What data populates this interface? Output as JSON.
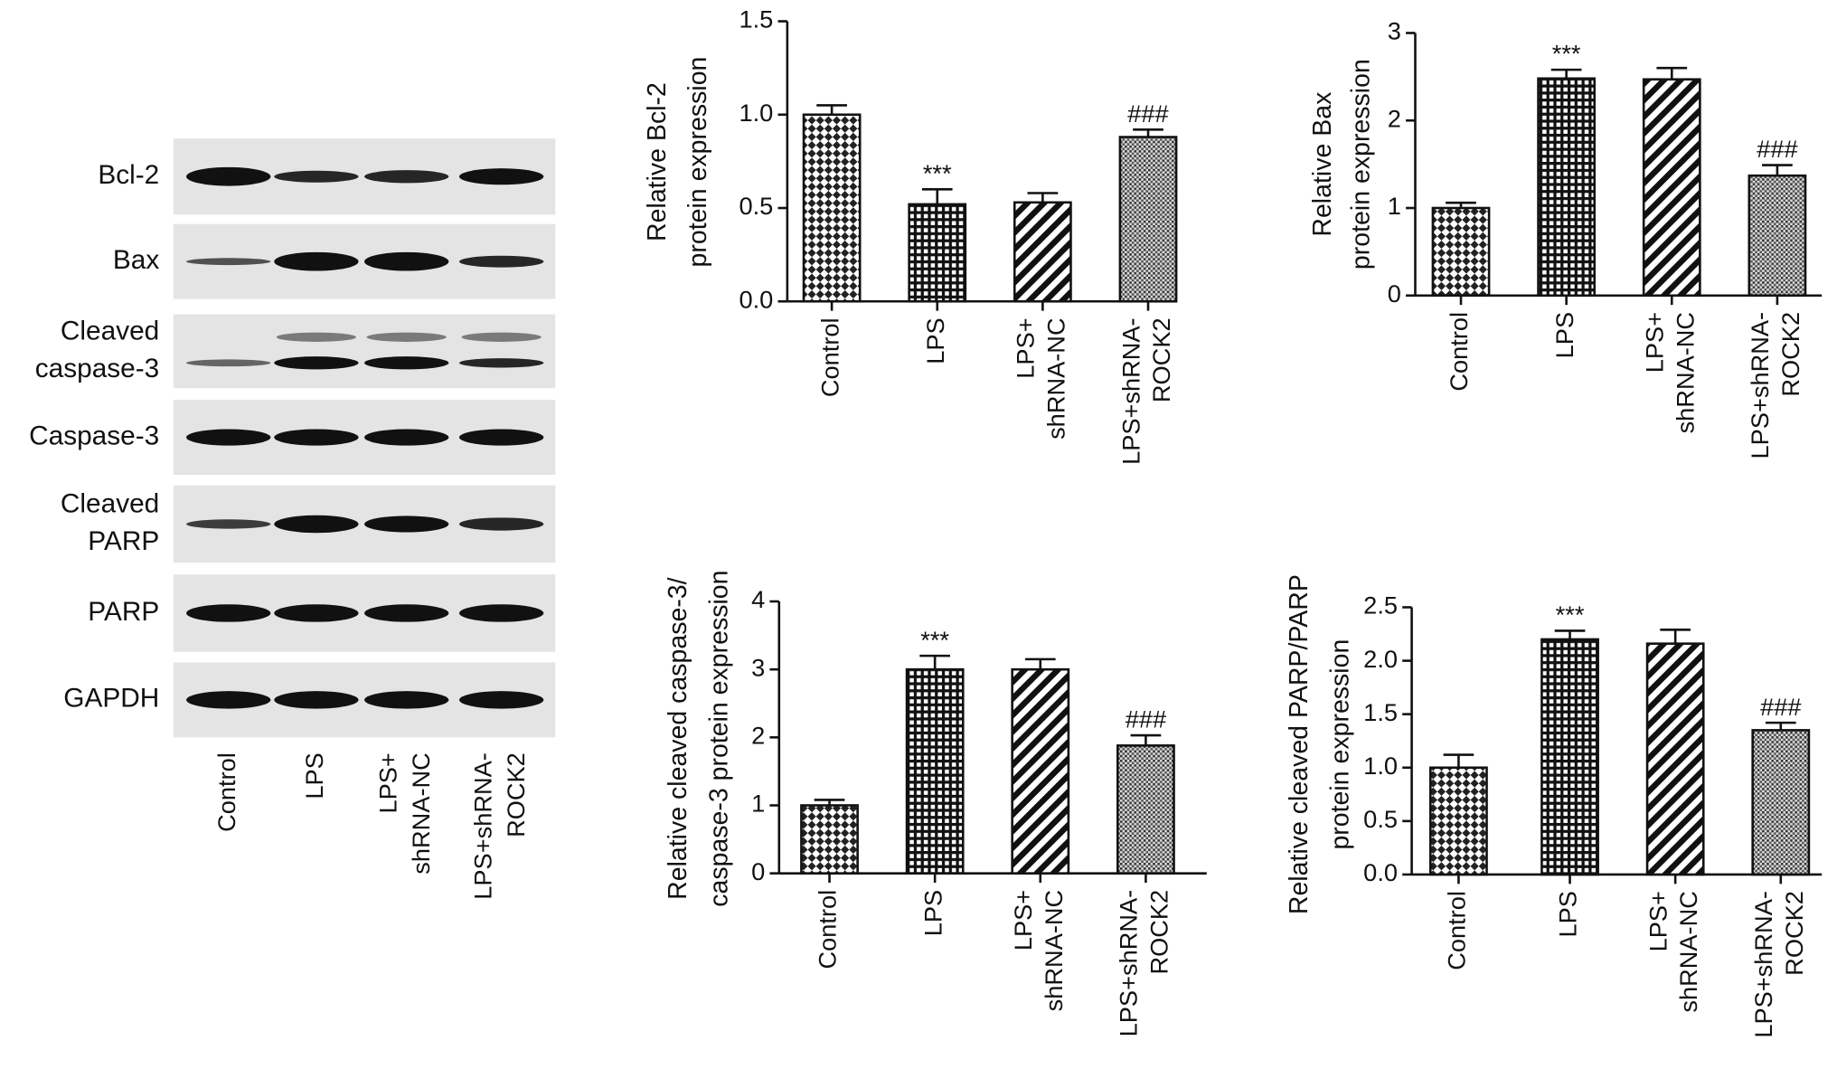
{
  "blot": {
    "rows": [
      [
        "Bcl-2"
      ],
      [
        "Bax"
      ],
      [
        "Cleaved",
        "caspase-3"
      ],
      [
        "Caspase-3"
      ],
      [
        "Cleaved",
        "PARP"
      ],
      [
        "PARP"
      ],
      [
        "GAPDH"
      ]
    ],
    "lanes": [
      [
        "Control"
      ],
      [
        "LPS"
      ],
      [
        "LPS+",
        "shRNA-NC"
      ],
      [
        "LPS+shRNA-",
        "ROCK2"
      ]
    ]
  },
  "chart_data": [
    {
      "type": "bar",
      "ylabel": [
        "Relative Bcl-2",
        "protein expression"
      ],
      "categories": [
        [
          "Control"
        ],
        [
          "LPS"
        ],
        [
          "LPS+",
          "shRNA-NC"
        ],
        [
          "LPS+shRNA-",
          "ROCK2"
        ]
      ],
      "values": [
        1.0,
        0.52,
        0.53,
        0.88
      ],
      "errors": [
        0.05,
        0.08,
        0.05,
        0.04
      ],
      "annotations": [
        null,
        "***",
        null,
        "###"
      ],
      "patterns": [
        "checker",
        "grid",
        "stripes",
        "dots"
      ],
      "ylim": [
        0,
        1.5
      ],
      "yticks": [
        {
          "value": 0,
          "label": "0.0"
        },
        0.5,
        {
          "value": 1,
          "label": "1.0"
        },
        1.5
      ]
    },
    {
      "type": "bar",
      "ylabel": [
        "Relative Bax",
        "protein expression"
      ],
      "categories": [
        [
          "Control"
        ],
        [
          "LPS"
        ],
        [
          "LPS+",
          "shRNA-NC"
        ],
        [
          "LPS+shRNA-",
          "ROCK2"
        ]
      ],
      "values": [
        1.0,
        2.48,
        2.47,
        1.37
      ],
      "errors": [
        0.06,
        0.1,
        0.13,
        0.12
      ],
      "annotations": [
        null,
        "***",
        null,
        "###"
      ],
      "patterns": [
        "checker",
        "grid",
        "stripes",
        "dots"
      ],
      "ylim": [
        0,
        3
      ],
      "yticks": [
        0,
        1,
        2,
        3
      ]
    },
    {
      "type": "bar",
      "ylabel": [
        "Relative cleaved caspase-3/",
        "caspase-3 protein expression"
      ],
      "categories": [
        [
          "Control"
        ],
        [
          "LPS"
        ],
        [
          "LPS+",
          "shRNA-NC"
        ],
        [
          "LPS+shRNA-",
          "ROCK2"
        ]
      ],
      "values": [
        1.0,
        3.0,
        3.0,
        1.88
      ],
      "errors": [
        0.08,
        0.2,
        0.15,
        0.15
      ],
      "annotations": [
        null,
        "***",
        null,
        "###"
      ],
      "patterns": [
        "checker",
        "grid",
        "stripes",
        "dots"
      ],
      "ylim": [
        0,
        4
      ],
      "yticks": [
        0,
        1,
        2,
        3,
        4
      ]
    },
    {
      "type": "bar",
      "ylabel": [
        "Relative cleaved PARP/PARP",
        "protein expression"
      ],
      "categories": [
        [
          "Control"
        ],
        [
          "LPS"
        ],
        [
          "LPS+",
          "shRNA-NC"
        ],
        [
          "LPS+shRNA-",
          "ROCK2"
        ]
      ],
      "values": [
        1.0,
        2.2,
        2.16,
        1.35
      ],
      "errors": [
        0.12,
        0.08,
        0.13,
        0.07
      ],
      "annotations": [
        null,
        "***",
        null,
        "###"
      ],
      "patterns": [
        "checker",
        "grid",
        "stripes",
        "dots"
      ],
      "ylim": [
        0,
        2.5
      ],
      "yticks": [
        {
          "value": 0,
          "label": "0.0"
        },
        0.5,
        {
          "value": 1,
          "label": "1.0"
        },
        1.5,
        {
          "value": 2,
          "label": "2.0"
        },
        2.5
      ]
    }
  ]
}
